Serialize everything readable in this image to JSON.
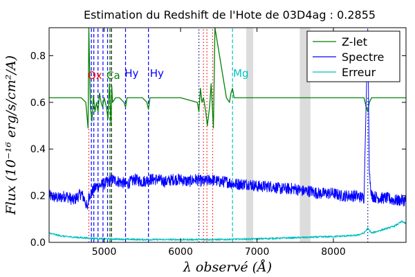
{
  "chart_data": {
    "type": "line",
    "title": "Estimation du Redshift de l'Hote de 03D4ag : 0.2855",
    "xlabel": "λ observé (Å)",
    "ylabel": "Flux (10⁻¹⁶ erg/s/cm²/A)",
    "xlim": [
      4280,
      8950
    ],
    "ylim": [
      0.0,
      0.92
    ],
    "x_ticks": [
      5000,
      6000,
      7000,
      8000
    ],
    "x_tick_labels": [
      "5000",
      "6000",
      "7000",
      "8000"
    ],
    "y_ticks": [
      0.0,
      0.2,
      0.4,
      0.6,
      0.8
    ],
    "y_tick_labels": [
      "0.0",
      "0.2",
      "0.4",
      "0.6",
      "0.8"
    ],
    "legend_position": "top-right",
    "series": [
      {
        "name": "Z-let",
        "color": "#008000",
        "baseline": 0.62,
        "x": [
          4280,
          4700,
          4760,
          4790,
          4800,
          4820,
          4840,
          4860,
          4880,
          4900,
          4920,
          4940,
          4960,
          4980,
          5000,
          5030,
          5050,
          5070,
          5090,
          5100,
          5110,
          5150,
          5200,
          5260,
          5280,
          5300,
          5500,
          5560,
          5580,
          5600,
          6000,
          6220,
          6240,
          6260,
          6280,
          6300,
          6330,
          6350,
          6380,
          6400,
          6430,
          6450,
          6600,
          6640,
          6660,
          6680,
          6700,
          6800,
          8400,
          8430,
          8450,
          8470,
          8500,
          8950
        ],
        "y": [
          0.62,
          0.62,
          0.6,
          0.49,
          0.92,
          0.58,
          0.52,
          0.63,
          0.56,
          0.6,
          0.56,
          0.64,
          0.6,
          0.58,
          0.62,
          0.58,
          0.53,
          0.68,
          0.5,
          0.67,
          0.6,
          0.62,
          0.62,
          0.6,
          0.58,
          0.62,
          0.62,
          0.6,
          0.57,
          0.62,
          0.62,
          0.6,
          0.56,
          0.66,
          0.6,
          0.62,
          0.56,
          0.5,
          0.58,
          0.68,
          0.49,
          0.92,
          0.62,
          0.6,
          0.64,
          0.66,
          0.62,
          0.62,
          0.62,
          0.58,
          0.56,
          0.6,
          0.62,
          0.62
        ]
      },
      {
        "name": "Spectre",
        "color": "#0000ff",
        "x": [
          4280,
          4400,
          4500,
          4600,
          4700,
          4750,
          4780,
          4800,
          4850,
          4900,
          5000,
          5100,
          5200,
          5300,
          5400,
          5500,
          5600,
          5700,
          5800,
          5900,
          6000,
          6100,
          6200,
          6300,
          6400,
          6500,
          6600,
          6700,
          6800,
          6900,
          7000,
          7100,
          7200,
          7300,
          7400,
          7500,
          7600,
          7700,
          7800,
          7900,
          8000,
          8100,
          8200,
          8300,
          8400,
          8430,
          8450,
          8470,
          8500,
          8600,
          8700,
          8800,
          8950
        ],
        "y": [
          0.2,
          0.19,
          0.2,
          0.18,
          0.21,
          0.18,
          0.14,
          0.2,
          0.22,
          0.24,
          0.25,
          0.27,
          0.26,
          0.25,
          0.27,
          0.26,
          0.27,
          0.27,
          0.26,
          0.27,
          0.27,
          0.26,
          0.27,
          0.26,
          0.27,
          0.26,
          0.26,
          0.25,
          0.25,
          0.25,
          0.24,
          0.24,
          0.24,
          0.23,
          0.23,
          0.23,
          0.22,
          0.22,
          0.21,
          0.21,
          0.21,
          0.2,
          0.2,
          0.2,
          0.19,
          0.62,
          0.92,
          0.3,
          0.2,
          0.19,
          0.19,
          0.18,
          0.18
        ],
        "noise": 0.025
      },
      {
        "name": "Erreur",
        "color": "#00bfbf",
        "x": [
          4280,
          4400,
          4500,
          4700,
          5000,
          5500,
          6000,
          6500,
          7000,
          7500,
          8000,
          8300,
          8400,
          8450,
          8500,
          8600,
          8700,
          8800,
          8900,
          8950
        ],
        "y": [
          0.04,
          0.03,
          0.025,
          0.02,
          0.015,
          0.012,
          0.012,
          0.012,
          0.015,
          0.02,
          0.025,
          0.03,
          0.04,
          0.06,
          0.04,
          0.05,
          0.06,
          0.07,
          0.09,
          0.08
        ],
        "noise": 0.004
      }
    ],
    "shaded_bands": [
      {
        "x0": 6860,
        "x1": 6950,
        "color": "#dcdcdc"
      },
      {
        "x0": 7560,
        "x1": 7700,
        "color": "#dcdcdc"
      }
    ],
    "vlines": [
      {
        "x": 4800,
        "color": "#ff0000",
        "style": "dotted",
        "from": 0.0,
        "to": 0.49
      },
      {
        "x": 4833,
        "color": "#0000ff",
        "style": "dashed",
        "from": 0.0,
        "to": 0.92
      },
      {
        "x": 4865,
        "color": "#0000ff",
        "style": "dashed",
        "from": 0.0,
        "to": 0.92
      },
      {
        "x": 4920,
        "color": "#0000ff",
        "style": "dashed",
        "from": 0.0,
        "to": 0.92
      },
      {
        "x": 4985,
        "color": "#0000ff",
        "style": "dashed",
        "from": 0.0,
        "to": 0.92
      },
      {
        "x": 5045,
        "color": "#0000ff",
        "style": "dashed",
        "from": 0.0,
        "to": 0.92
      },
      {
        "x": 5075,
        "color": "#008000",
        "style": "dashed",
        "from": 0.0,
        "to": 0.92
      },
      {
        "x": 5095,
        "color": "#000000",
        "style": "dashed",
        "from": 0.0,
        "to": 0.92
      },
      {
        "x": 5280,
        "color": "#0000ff",
        "style": "dashed",
        "from": 0.0,
        "to": 0.92
      },
      {
        "x": 5580,
        "color": "#0000ff",
        "style": "dashed",
        "from": 0.0,
        "to": 0.92
      },
      {
        "x": 6240,
        "color": "#000080",
        "style": "dotted",
        "from": 0.0,
        "to": 0.92
      },
      {
        "x": 6300,
        "color": "#ff0000",
        "style": "dotted",
        "from": 0.0,
        "to": 0.92
      },
      {
        "x": 6345,
        "color": "#ff0000",
        "style": "dotted",
        "from": 0.0,
        "to": 0.92
      },
      {
        "x": 6420,
        "color": "#ff0000",
        "style": "dotted",
        "from": 0.0,
        "to": 0.92
      },
      {
        "x": 6680,
        "color": "#00bfbf",
        "style": "dashed",
        "from": 0.0,
        "to": 0.92
      },
      {
        "x": 8450,
        "color": "#000080",
        "style": "dotted",
        "from": 0.0,
        "to": 0.62
      }
    ],
    "line_labels": [
      {
        "text": "Ox",
        "x": 4880,
        "y": 0.7,
        "color": "#ff0000"
      },
      {
        "text": "Ca",
        "x": 5120,
        "y": 0.7,
        "color": "#008000"
      },
      {
        "text": "Hy",
        "x": 5360,
        "y": 0.71,
        "color": "#0000ff"
      },
      {
        "text": "Hy",
        "x": 5690,
        "y": 0.71,
        "color": "#0000ff"
      },
      {
        "text": "Mg",
        "x": 6790,
        "y": 0.71,
        "color": "#00bfbf"
      }
    ]
  }
}
